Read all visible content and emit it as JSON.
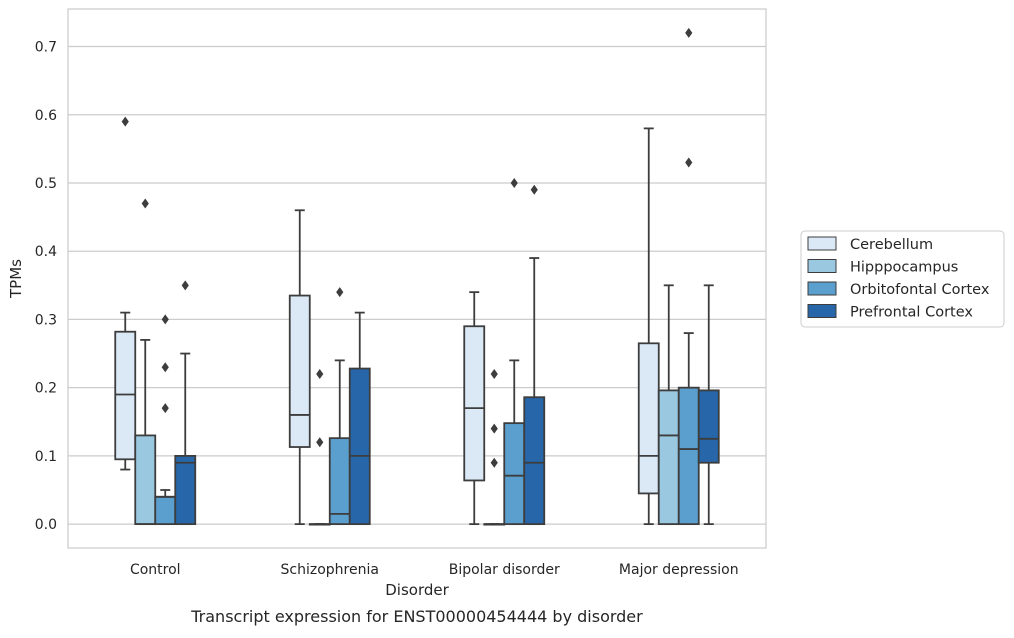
{
  "chart_data": {
    "type": "box",
    "caption": "Transcript expression for ENST00000454444 by disorder",
    "xlabel": "Disorder",
    "ylabel": "TPMs",
    "ylim": [
      -0.035,
      0.755
    ],
    "yticks": [
      0.0,
      0.1,
      0.2,
      0.3,
      0.4,
      0.5,
      0.6,
      0.7
    ],
    "ytick_labels": [
      "0.0",
      "0.1",
      "0.2",
      "0.3",
      "0.4",
      "0.5",
      "0.6",
      "0.7"
    ],
    "grid": "horizontal",
    "legend_position": "right",
    "categories": [
      "Control",
      "Schizophrenia",
      "Bipolar disorder",
      "Major depression"
    ],
    "series": [
      {
        "name": "Cerebellum",
        "color": "#dbe9f6",
        "boxes": [
          {
            "whisker_low": 0.08,
            "q1": 0.095,
            "median": 0.19,
            "q3": 0.282,
            "whisker_high": 0.31,
            "outliers": [
              0.59
            ]
          },
          {
            "whisker_low": 0.0,
            "q1": 0.113,
            "median": 0.16,
            "q3": 0.335,
            "whisker_high": 0.46,
            "outliers": []
          },
          {
            "whisker_low": 0.0,
            "q1": 0.064,
            "median": 0.17,
            "q3": 0.29,
            "whisker_high": 0.34,
            "outliers": []
          },
          {
            "whisker_low": 0.0,
            "q1": 0.045,
            "median": 0.1,
            "q3": 0.265,
            "whisker_high": 0.58,
            "outliers": []
          }
        ]
      },
      {
        "name": "Hipppocampus",
        "color": "#9ac8e0",
        "boxes": [
          {
            "whisker_low": 0.0,
            "q1": 0.0,
            "median": 0.0,
            "q3": 0.13,
            "whisker_high": 0.27,
            "outliers": [
              0.47
            ]
          },
          {
            "whisker_low": 0.0,
            "q1": 0.0,
            "median": 0.0,
            "q3": 0.0,
            "whisker_high": 0.0,
            "outliers": [
              0.12,
              0.22
            ]
          },
          {
            "whisker_low": 0.0,
            "q1": 0.0,
            "median": 0.0,
            "q3": 0.0,
            "whisker_high": 0.0,
            "outliers": [
              0.09,
              0.14,
              0.22
            ]
          },
          {
            "whisker_low": 0.0,
            "q1": 0.0,
            "median": 0.13,
            "q3": 0.196,
            "whisker_high": 0.35,
            "outliers": []
          }
        ]
      },
      {
        "name": "Orbitofontal Cortex",
        "color": "#5a9fcd",
        "boxes": [
          {
            "whisker_low": 0.0,
            "q1": 0.0,
            "median": 0.04,
            "q3": 0.04,
            "whisker_high": 0.05,
            "outliers": [
              0.17,
              0.23,
              0.3
            ]
          },
          {
            "whisker_low": 0.0,
            "q1": 0.0,
            "median": 0.015,
            "q3": 0.126,
            "whisker_high": 0.24,
            "outliers": [
              0.34
            ]
          },
          {
            "whisker_low": 0.0,
            "q1": 0.0,
            "median": 0.071,
            "q3": 0.148,
            "whisker_high": 0.24,
            "outliers": [
              0.5
            ]
          },
          {
            "whisker_low": 0.0,
            "q1": 0.0,
            "median": 0.11,
            "q3": 0.2,
            "whisker_high": 0.28,
            "outliers": [
              0.53,
              0.72
            ]
          }
        ]
      },
      {
        "name": "Prefrontal Cortex",
        "color": "#2666a9",
        "boxes": [
          {
            "whisker_low": 0.0,
            "q1": 0.0,
            "median": 0.09,
            "q3": 0.1,
            "whisker_high": 0.25,
            "outliers": [
              0.35
            ]
          },
          {
            "whisker_low": 0.0,
            "q1": 0.0,
            "median": 0.1,
            "q3": 0.228,
            "whisker_high": 0.31,
            "outliers": []
          },
          {
            "whisker_low": 0.0,
            "q1": 0.0,
            "median": 0.09,
            "q3": 0.186,
            "whisker_high": 0.39,
            "outliers": [
              0.49
            ]
          },
          {
            "whisker_low": 0.0,
            "q1": 0.09,
            "median": 0.125,
            "q3": 0.196,
            "whisker_high": 0.35,
            "outliers": []
          }
        ]
      }
    ]
  }
}
